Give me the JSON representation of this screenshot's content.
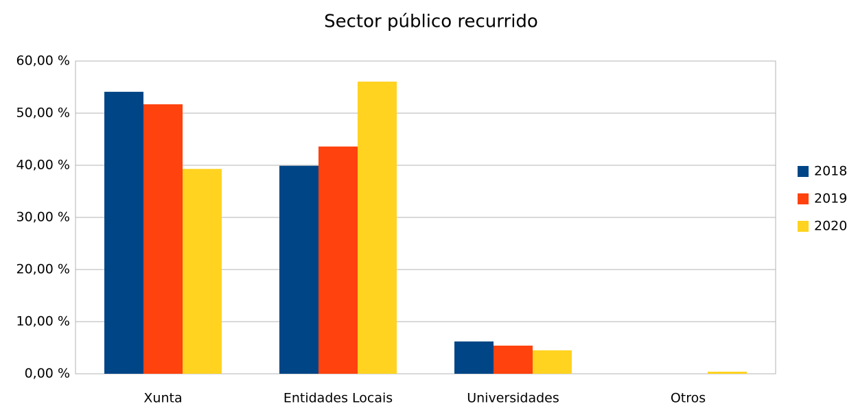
{
  "chart_data": {
    "type": "bar",
    "title": "Sector público recurrido",
    "categories": [
      "Xunta",
      "Entidades Locais",
      "Universidades",
      "Otros"
    ],
    "series": [
      {
        "name": "2018",
        "color": "#004586",
        "values": [
          54.1,
          39.9,
          6.2,
          0
        ]
      },
      {
        "name": "2019",
        "color": "#ff420e",
        "values": [
          51.7,
          43.6,
          5.4,
          0
        ]
      },
      {
        "name": "2020",
        "color": "#ffd320",
        "values": [
          39.3,
          56.05,
          4.5,
          0.4
        ]
      }
    ],
    "ylim": [
      0,
      60
    ],
    "yticks": [
      {
        "value": 0,
        "label": "0,00 %"
      },
      {
        "value": 10,
        "label": "10,00 %"
      },
      {
        "value": 20,
        "label": "20,00 %"
      },
      {
        "value": 30,
        "label": "30,00 %"
      },
      {
        "value": 40,
        "label": "40,00 %"
      },
      {
        "value": 50,
        "label": "50,00 %"
      },
      {
        "value": 60,
        "label": "60,00 %"
      }
    ],
    "grid": true,
    "legend": "right"
  }
}
